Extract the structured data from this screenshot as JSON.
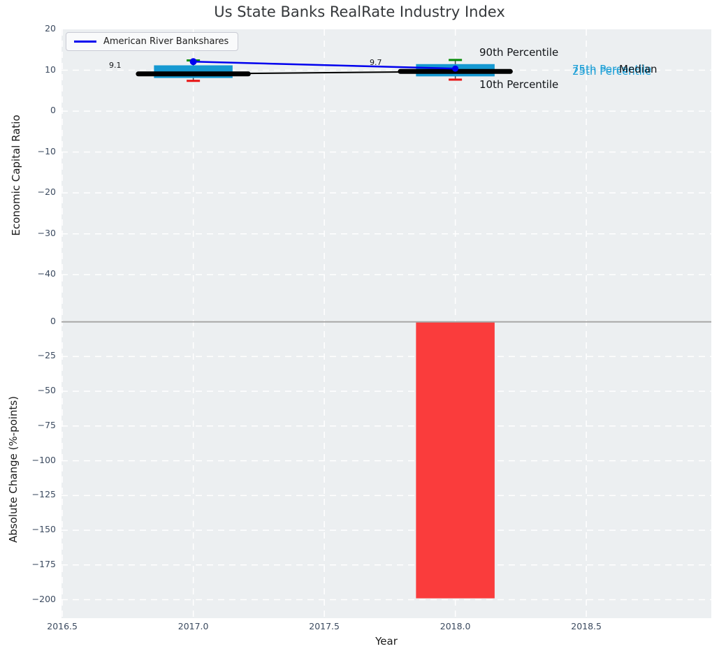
{
  "figure": {
    "title": "Us State Banks RealRate Industry Index",
    "background": "#ffffff",
    "axes_background": "#eceff1",
    "grid_color": "#ffffff",
    "tick_color": "#3b4a5f"
  },
  "chart_data": [
    {
      "type": "boxplot",
      "title": "Us State Banks RealRate Industry Index",
      "ylabel": "Economic Capital Ratio",
      "xlim": [
        2016.497,
        2018.977
      ],
      "ylim": [
        -51.4,
        20
      ],
      "yticks": [
        20,
        10,
        0,
        -10,
        -20,
        -30,
        -40
      ],
      "ytick_labels": [
        "20",
        "10",
        "0",
        "−10",
        "−20",
        "−30",
        "−40"
      ],
      "grid": "white dashed",
      "legend_position": "upper left",
      "box_color": "#1699d2",
      "whisker_color": "#444444",
      "p90_cap_color": "#078c07",
      "p10_cap_color": "#e81212",
      "median_color": "#000000",
      "box_width_years": 0.3,
      "median_segment_halfwidth_years": 0.21,
      "boxes": [
        {
          "x": 2017,
          "p10": 7.4,
          "p25": 8.1,
          "median": 9.1,
          "p75": 11.2,
          "p90": 12.4,
          "label": "9.1"
        },
        {
          "x": 2018,
          "p10": 7.7,
          "p25": 8.5,
          "median": 9.7,
          "p75": 11.5,
          "p90": 12.5,
          "label": "9.7"
        }
      ],
      "series": [
        {
          "name": "American River Bankshares",
          "color": "#0000ee",
          "x": [
            2017,
            2018
          ],
          "y": [
            12.1,
            10.4
          ]
        }
      ],
      "annotations": {
        "p90": "90th Percentile",
        "p10": "10th Percentile",
        "p75": "75th Percentile",
        "p25": "25th Percentile",
        "median": "Median"
      }
    },
    {
      "type": "bar",
      "ylabel": "Absolute Change (%-points)",
      "xlabel": "Year",
      "xlim": [
        2016.497,
        2018.977
      ],
      "ylim": [
        -213.3,
        0.35
      ],
      "yticks": [
        0,
        -25,
        -50,
        -75,
        -100,
        -125,
        -150,
        -175,
        -200
      ],
      "ytick_labels": [
        "0",
        "−25",
        "−50",
        "−75",
        "−100",
        "−125",
        "−150",
        "−175",
        "−200"
      ],
      "xticks": [
        2016.5,
        2017.0,
        2017.5,
        2018.0,
        2018.5
      ],
      "xtick_labels": [
        "2016.5",
        "2017.0",
        "2017.5",
        "2018.0",
        "2018.5"
      ],
      "zero_line_color": "#a8a8a8",
      "bars": [
        {
          "x": 2018,
          "value": -199,
          "width": 0.3,
          "color": "#fa3c3c"
        }
      ]
    }
  ]
}
